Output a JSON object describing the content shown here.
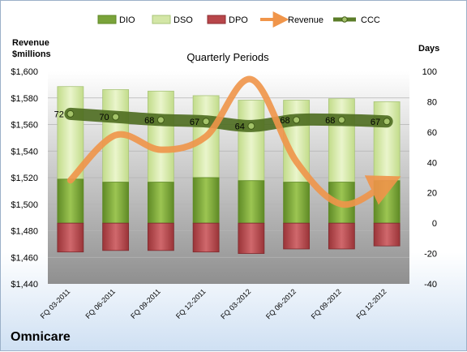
{
  "company": "Omnicare",
  "chart_data": {
    "type": "bar",
    "title": "Quarterly Periods",
    "left_axis_label_line1": "Revenue",
    "left_axis_label_line2": "$millions",
    "right_axis_label": "Days",
    "left_ylim": [
      1440,
      1600
    ],
    "right_ylim": [
      -40,
      100
    ],
    "left_ticks": [
      "$1,440",
      "$1,460",
      "$1,480",
      "$1,500",
      "$1,520",
      "$1,540",
      "$1,560",
      "$1,580",
      "$1,600"
    ],
    "right_ticks": [
      "-40",
      "-20",
      "0",
      "20",
      "40",
      "60",
      "80",
      "100"
    ],
    "categories": [
      "FQ 03-2011",
      "FQ 06-2011",
      "FQ 09-2011",
      "FQ 12-2011",
      "FQ 03-2012",
      "FQ 06-2012",
      "FQ 09-2012",
      "FQ 12-2012"
    ],
    "legend": [
      "DIO",
      "DSO",
      "DPO",
      "Revenue",
      "CCC"
    ],
    "series": [
      {
        "name": "DIO",
        "axis": "right",
        "values": [
          29,
          27,
          27,
          30,
          28,
          27,
          27,
          28
        ]
      },
      {
        "name": "DSO",
        "axis": "right",
        "values": [
          61,
          61,
          60,
          54,
          53,
          54,
          55,
          52
        ]
      },
      {
        "name": "DPO",
        "axis": "right",
        "values": [
          -19,
          -18,
          -18,
          -19,
          -20,
          -17,
          -17,
          -15
        ]
      },
      {
        "name": "Revenue",
        "axis": "left",
        "values": [
          1518,
          1552,
          1541,
          1551,
          1594,
          1532,
          1500,
          1516
        ]
      },
      {
        "name": "CCC",
        "axis": "right",
        "values": [
          72,
          70,
          68,
          67,
          64,
          68,
          68,
          67
        ]
      }
    ],
    "ccc_labels": [
      "72",
      "70",
      "68",
      "67",
      "64",
      "68",
      "68",
      "67"
    ],
    "colors": {
      "DIO": "#7aa33a",
      "DSO": "#d3e6a6",
      "DPO": "#b8464a",
      "Revenue": "#f0954a",
      "CCC": "#5b7c28"
    }
  }
}
